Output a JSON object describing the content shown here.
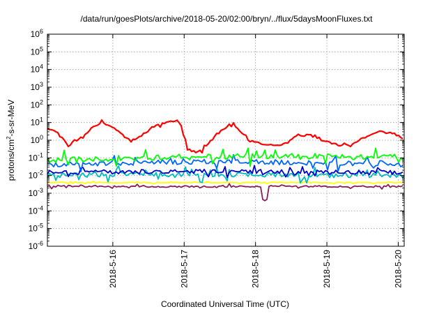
{
  "chart_data": {
    "type": "line",
    "title": "/data/run/goesPlots/archive/2018-05-20/02:00/bryn/../flux/5daysMoonFluxes.txt",
    "xlabel": "Coordinated Universal Time (UTC)",
    "ylabel": "protons/cm2-s-sr-MeV",
    "ylabel_parts": {
      "pre": "protons/cm",
      "sup": "2",
      "post": "-s-sr-MeV"
    },
    "yscale": "log",
    "ylim": [
      1e-06,
      1000000.0
    ],
    "y_ticks": [
      {
        "value": 1e-06,
        "base": "10",
        "exp": "-6"
      },
      {
        "value": 1e-05,
        "base": "10",
        "exp": "-5"
      },
      {
        "value": 0.0001,
        "base": "10",
        "exp": "-4"
      },
      {
        "value": 0.001,
        "base": "10",
        "exp": "-3"
      },
      {
        "value": 0.01,
        "base": "10",
        "exp": "-2"
      },
      {
        "value": 0.1,
        "base": "10",
        "exp": "-1"
      },
      {
        "value": 1,
        "base": "10",
        "exp": "0"
      },
      {
        "value": 10,
        "base": "10",
        "exp": "1"
      },
      {
        "value": 100,
        "base": "10",
        "exp": "2"
      },
      {
        "value": 1000.0,
        "base": "10",
        "exp": "3"
      },
      {
        "value": 10000.0,
        "base": "10",
        "exp": "4"
      },
      {
        "value": 100000.0,
        "base": "10",
        "exp": "5"
      },
      {
        "value": 1000000.0,
        "base": "10",
        "exp": "6"
      }
    ],
    "xlim": [
      "2018-05-15T02:00",
      "2018-05-20T02:00"
    ],
    "x_ticks": [
      {
        "date": "2018-05-16T00:00",
        "label": "2018-5-16"
      },
      {
        "date": "2018-05-17T00:00",
        "label": "2018-5-17"
      },
      {
        "date": "2018-05-18T00:00",
        "label": "2018-5-18"
      },
      {
        "date": "2018-05-19T00:00",
        "label": "2018-5-19"
      },
      {
        "date": "2018-05-20T00:00",
        "label": "2018-5-20"
      }
    ],
    "grid": true,
    "series": [
      {
        "color": "#ff0000",
        "values": [
          {
            "x": "2018-05-15T02:00",
            "y": 5
          },
          {
            "x": "2018-05-15T05:00",
            "y": 3
          },
          {
            "x": "2018-05-15T08:00",
            "y": 0.8
          },
          {
            "x": "2018-05-15T09:00",
            "y": 0.4
          },
          {
            "x": "2018-05-15T11:00",
            "y": 0.9
          },
          {
            "x": "2018-05-15T14:00",
            "y": 1.5
          },
          {
            "x": "2018-05-15T17:00",
            "y": 5
          },
          {
            "x": "2018-05-15T20:00",
            "y": 10
          },
          {
            "x": "2018-05-15T23:00",
            "y": 6
          },
          {
            "x": "2018-05-16T02:00",
            "y": 3
          },
          {
            "x": "2018-05-16T06:00",
            "y": 0.9
          },
          {
            "x": "2018-05-16T09:00",
            "y": 1.5
          },
          {
            "x": "2018-05-16T13:00",
            "y": 5
          },
          {
            "x": "2018-05-16T18:00",
            "y": 10
          },
          {
            "x": "2018-05-16T22:00",
            "y": 13
          },
          {
            "x": "2018-05-17T00:00",
            "y": 1.5
          },
          {
            "x": "2018-05-17T01:00",
            "y": 0.3
          },
          {
            "x": "2018-05-17T05:00",
            "y": 0.2
          },
          {
            "x": "2018-05-17T08:00",
            "y": 0.6
          },
          {
            "x": "2018-05-17T12:00",
            "y": 3
          },
          {
            "x": "2018-05-17T16:00",
            "y": 9
          },
          {
            "x": "2018-05-17T19:00",
            "y": 3
          },
          {
            "x": "2018-05-17T22:00",
            "y": 0.9
          },
          {
            "x": "2018-05-18T04:00",
            "y": 0.6
          },
          {
            "x": "2018-05-18T08:00",
            "y": 0.5
          },
          {
            "x": "2018-05-18T13:00",
            "y": 1.5
          },
          {
            "x": "2018-05-18T18:00",
            "y": 2
          },
          {
            "x": "2018-05-18T22:00",
            "y": 1
          },
          {
            "x": "2018-05-19T04:00",
            "y": 0.5
          },
          {
            "x": "2018-05-19T08:00",
            "y": 0.6
          },
          {
            "x": "2018-05-19T13:00",
            "y": 1.5
          },
          {
            "x": "2018-05-19T18:00",
            "y": 3
          },
          {
            "x": "2018-05-19T22:00",
            "y": 2.5
          },
          {
            "x": "2018-05-20T00:00",
            "y": 1.8
          },
          {
            "x": "2018-05-20T02:00",
            "y": 0.8
          }
        ]
      },
      {
        "color": "#00ff00",
        "values": [
          {
            "x": "2018-05-15T02:00",
            "y": 0.08
          },
          {
            "x": "2018-05-16T02:00",
            "y": 0.1
          },
          {
            "x": "2018-05-17T02:00",
            "y": 0.11
          },
          {
            "x": "2018-05-18T02:00",
            "y": 0.12
          },
          {
            "x": "2018-05-19T02:00",
            "y": 0.12
          },
          {
            "x": "2018-05-20T02:00",
            "y": 0.12
          }
        ]
      },
      {
        "color": "#0066ff",
        "values": [
          {
            "x": "2018-05-15T02:00",
            "y": 0.04
          },
          {
            "x": "2018-05-16T02:00",
            "y": 0.05
          },
          {
            "x": "2018-05-17T02:00",
            "y": 0.06
          },
          {
            "x": "2018-05-18T02:00",
            "y": 0.06
          },
          {
            "x": "2018-05-19T02:00",
            "y": 0.05
          },
          {
            "x": "2018-05-20T02:00",
            "y": 0.05
          }
        ]
      },
      {
        "color": "#00bbbb",
        "values": [
          {
            "x": "2018-05-15T02:00",
            "y": 0.01
          },
          {
            "x": "2018-05-16T02:00",
            "y": 0.012
          },
          {
            "x": "2018-05-17T02:00",
            "y": 0.012
          },
          {
            "x": "2018-05-18T02:00",
            "y": 0.011
          },
          {
            "x": "2018-05-19T02:00",
            "y": 0.01
          },
          {
            "x": "2018-05-20T02:00",
            "y": 0.01
          }
        ]
      },
      {
        "color": "#0000cc",
        "values": [
          {
            "x": "2018-05-15T02:00",
            "y": 0.015
          },
          {
            "x": "2018-05-16T02:00",
            "y": 0.016
          },
          {
            "x": "2018-05-17T02:00",
            "y": 0.018
          },
          {
            "x": "2018-05-18T02:00",
            "y": 0.017
          },
          {
            "x": "2018-05-19T02:00",
            "y": 0.015
          },
          {
            "x": "2018-05-20T02:00",
            "y": 0.014
          }
        ]
      },
      {
        "color": "#ffff00",
        "values": [
          {
            "x": "2018-05-15T02:00",
            "y": 0.004
          },
          {
            "x": "2018-05-16T02:00",
            "y": 0.004
          },
          {
            "x": "2018-05-17T02:00",
            "y": 0.004
          },
          {
            "x": "2018-05-18T02:00",
            "y": 0.004
          },
          {
            "x": "2018-05-19T02:00",
            "y": 0.004
          },
          {
            "x": "2018-05-20T02:00",
            "y": 0.004
          }
        ]
      },
      {
        "color": "#8b1a5a",
        "values": [
          {
            "x": "2018-05-15T02:00",
            "y": 0.0025
          },
          {
            "x": "2018-05-16T02:00",
            "y": 0.0025
          },
          {
            "x": "2018-05-17T02:00",
            "y": 0.0024
          },
          {
            "x": "2018-05-18T02:00",
            "y": 0.0025
          },
          {
            "x": "2018-05-18T03:00",
            "y": 0.0004
          },
          {
            "x": "2018-05-18T04:00",
            "y": 0.0025
          },
          {
            "x": "2018-05-19T02:00",
            "y": 0.0024
          },
          {
            "x": "2018-05-20T02:00",
            "y": 0.0024
          }
        ]
      }
    ]
  }
}
